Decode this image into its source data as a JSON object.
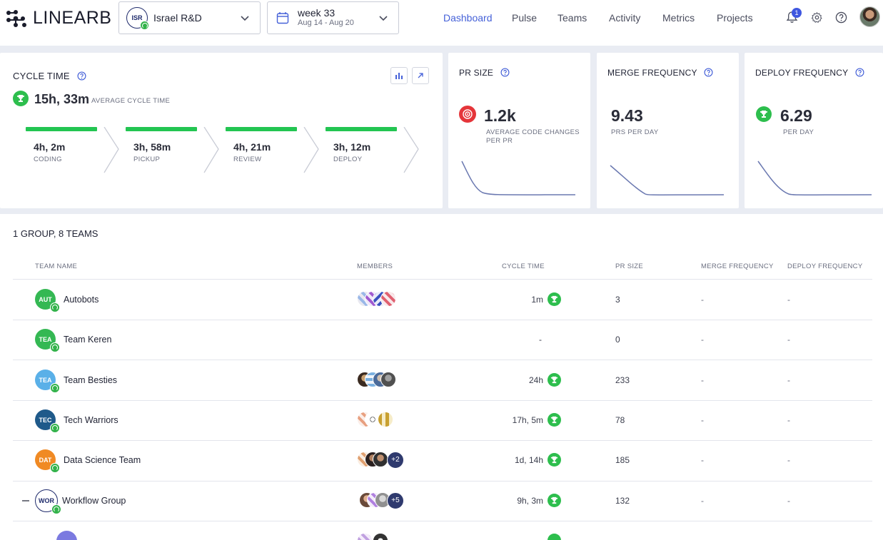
{
  "header": {
    "logo": "LINEARB",
    "group_selector": {
      "initials": "ISR",
      "label": "Israel R&D"
    },
    "week_selector": {
      "title": "week 33",
      "range": "Aug 14 - Aug 20"
    },
    "nav": [
      "Dashboard",
      "Pulse",
      "Teams",
      "Activity",
      "Metrics",
      "Projects"
    ],
    "active_nav": "Dashboard",
    "notification_count": "1"
  },
  "cycle_time": {
    "title": "CYCLE TIME",
    "value": "15h, 33m",
    "caption": "AVERAGE CYCLE TIME",
    "stages": [
      {
        "value": "4h, 2m",
        "label": "CODING"
      },
      {
        "value": "3h, 58m",
        "label": "PICKUP"
      },
      {
        "value": "4h, 21m",
        "label": "REVIEW"
      },
      {
        "value": "3h, 12m",
        "label": "DEPLOY"
      }
    ]
  },
  "metrics": [
    {
      "title": "PR SIZE",
      "value": "1.2k",
      "caption_line1": "AVERAGE CODE CHANGES",
      "caption_line2": "PER PR",
      "status": "target"
    },
    {
      "title": "MERGE FREQUENCY",
      "value": "9.43",
      "caption_line1": "PRS PER DAY",
      "caption_line2": "",
      "status": "none"
    },
    {
      "title": "DEPLOY FREQUENCY",
      "value": "6.29",
      "caption_line1": "PER DAY",
      "caption_line2": "",
      "status": "trophy"
    }
  ],
  "table": {
    "title": "1 GROUP, 8 TEAMS",
    "columns": [
      "TEAM NAME",
      "MEMBERS",
      "CYCLE TIME",
      "PR SIZE",
      "MERGE FREQUENCY",
      "DEPLOY FREQUENCY"
    ],
    "rows": [
      {
        "initials": "AUT",
        "name": "Autobots",
        "color": "#34b853",
        "cycle_time": "1m",
        "trophy": true,
        "pr_size": "3",
        "merge": "-",
        "deploy": "-",
        "extra": ""
      },
      {
        "initials": "TEA",
        "name": "Team Keren",
        "color": "#34b853",
        "cycle_time": "-",
        "trophy": false,
        "pr_size": "0",
        "merge": "-",
        "deploy": "-",
        "extra": ""
      },
      {
        "initials": "TEA",
        "name": "Team Besties",
        "color": "#5ab0e8",
        "cycle_time": "24h",
        "trophy": true,
        "pr_size": "233",
        "merge": "-",
        "deploy": "-",
        "extra": ""
      },
      {
        "initials": "TEC",
        "name": "Tech Warriors",
        "color": "#1f5a8a",
        "cycle_time": "17h, 5m",
        "trophy": true,
        "pr_size": "78",
        "merge": "-",
        "deploy": "-",
        "extra": ""
      },
      {
        "initials": "DAT",
        "name": "Data Science Team",
        "color": "#f08a24",
        "cycle_time": "1d, 14h",
        "trophy": true,
        "pr_size": "185",
        "merge": "-",
        "deploy": "-",
        "extra": "+2"
      },
      {
        "initials": "WOR",
        "name": "Workflow Group",
        "color": "#ffffff",
        "cycle_time": "9h, 3m",
        "trophy": true,
        "pr_size": "132",
        "merge": "-",
        "deploy": "-",
        "extra": "+5",
        "group": true
      }
    ]
  }
}
